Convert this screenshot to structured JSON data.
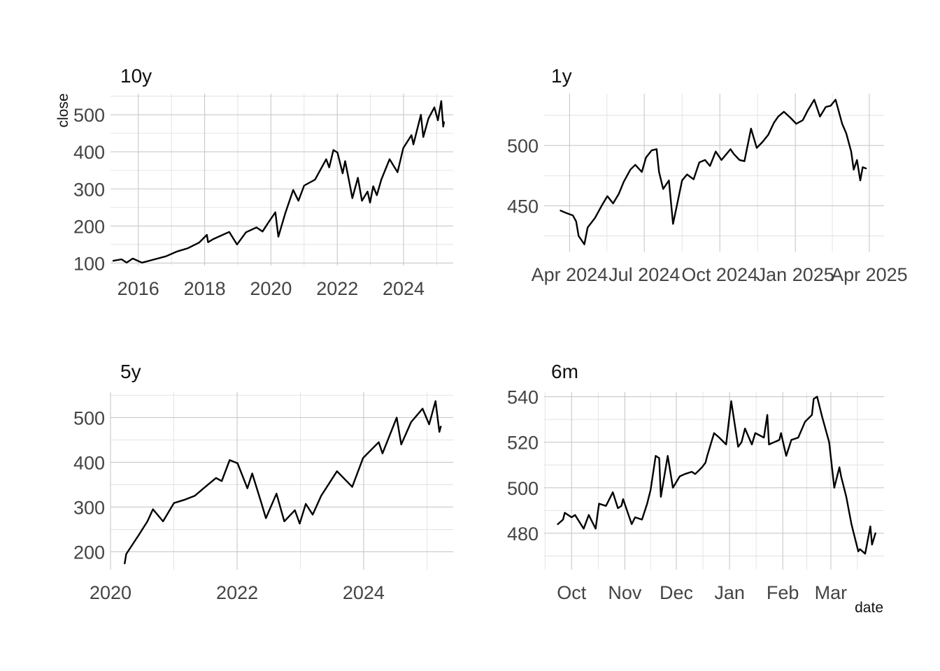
{
  "colors": {
    "line": "#000000",
    "grid_major": "#c8c8c8",
    "grid_minor": "#dedede",
    "background": "#ffffff"
  },
  "axis_titles": {
    "y": "close",
    "x": "date"
  },
  "chart_data": [
    {
      "type": "line",
      "title": "10y",
      "ylabel": "close",
      "xlabel": "",
      "x_type": "date",
      "xlim": [
        "2015-03-01",
        "2025-07-01"
      ],
      "ylim": [
        93,
        557
      ],
      "x_ticks": [
        "2016-01-01",
        "2018-01-01",
        "2020-01-01",
        "2022-01-01",
        "2024-01-01"
      ],
      "x_tick_labels": [
        "2016",
        "2018",
        "2020",
        "2022",
        "2024"
      ],
      "y_ticks": [
        100,
        200,
        300,
        400,
        500
      ],
      "y_tick_labels": [
        "100",
        "200",
        "300",
        "400",
        "500"
      ],
      "grid": true,
      "series": [
        {
          "x": [
            "2015-04-01",
            "2015-07-01",
            "2015-08-25",
            "2015-11-01",
            "2016-02-11",
            "2016-06-01",
            "2016-11-01",
            "2017-03-01",
            "2017-07-01",
            "2017-11-01",
            "2018-01-26",
            "2018-02-08",
            "2018-04-01",
            "2018-09-28",
            "2018-12-24",
            "2019-04-01",
            "2019-07-26",
            "2019-10-01",
            "2019-12-01",
            "2020-02-19",
            "2020-03-23",
            "2020-06-08",
            "2020-09-02",
            "2020-10-30",
            "2021-01-01",
            "2021-05-01",
            "2021-09-01",
            "2021-10-04",
            "2021-11-19",
            "2022-01-03",
            "2022-03-01",
            "2022-03-29",
            "2022-05-20",
            "2022-06-16",
            "2022-08-16",
            "2022-09-30",
            "2022-11-30",
            "2022-12-28",
            "2023-02-01",
            "2023-03-13",
            "2023-05-01",
            "2023-07-31",
            "2023-10-27",
            "2023-12-29",
            "2024-03-28",
            "2024-04-19",
            "2024-07-10",
            "2024-08-05",
            "2024-10-01",
            "2024-12-06",
            "2025-01-13",
            "2025-02-19",
            "2025-03-13",
            "2025-03-21"
          ],
          "y": [
            106,
            110,
            101,
            112,
            101,
            108,
            118,
            131,
            140,
            155,
            176,
            156,
            164,
            184,
            150,
            183,
            196,
            185,
            208,
            237,
            171,
            235,
            297,
            268,
            309,
            325,
            380,
            358,
            405,
            398,
            342,
            375,
            310,
            275,
            330,
            268,
            293,
            263,
            307,
            283,
            325,
            380,
            345,
            410,
            445,
            420,
            500,
            440,
            490,
            520,
            485,
            537,
            468,
            480
          ]
        }
      ]
    },
    {
      "type": "line",
      "title": "1y",
      "xlabel": "",
      "ylabel": "",
      "x_type": "date",
      "xlim": [
        "2024-03-01",
        "2025-04-19"
      ],
      "ylim": [
        412,
        543
      ],
      "x_ticks": [
        "2024-04-01",
        "2024-07-01",
        "2024-10-01",
        "2025-01-01",
        "2025-04-01"
      ],
      "x_tick_labels": [
        "Apr 2024",
        "Jul 2024",
        "Oct 2024",
        "Jan 2025",
        "Apr 2025"
      ],
      "y_ticks": [
        450,
        500
      ],
      "y_tick_labels": [
        "450",
        "500"
      ],
      "grid": true,
      "series": [
        {
          "x": [
            "2024-03-21",
            "2024-03-28",
            "2024-04-05",
            "2024-04-09",
            "2024-04-12",
            "2024-04-19",
            "2024-04-23",
            "2024-05-02",
            "2024-05-10",
            "2024-05-17",
            "2024-05-24",
            "2024-05-31",
            "2024-06-06",
            "2024-06-14",
            "2024-06-20",
            "2024-06-28",
            "2024-07-03",
            "2024-07-10",
            "2024-07-16",
            "2024-07-19",
            "2024-07-24",
            "2024-07-31",
            "2024-08-05",
            "2024-08-09",
            "2024-08-16",
            "2024-08-22",
            "2024-08-30",
            "2024-09-06",
            "2024-09-13",
            "2024-09-19",
            "2024-09-26",
            "2024-10-03",
            "2024-10-14",
            "2024-10-18",
            "2024-10-25",
            "2024-10-31",
            "2024-11-08",
            "2024-11-15",
            "2024-11-22",
            "2024-11-29",
            "2024-12-06",
            "2024-12-11",
            "2024-12-18",
            "2024-12-26",
            "2025-01-02",
            "2025-01-10",
            "2025-01-16",
            "2025-01-24",
            "2025-01-31",
            "2025-02-07",
            "2025-02-13",
            "2025-02-19",
            "2025-02-27",
            "2025-03-04",
            "2025-03-10",
            "2025-03-13",
            "2025-03-17",
            "2025-03-21",
            "2025-03-24",
            "2025-03-28"
          ],
          "y": [
            446,
            444,
            442,
            437,
            425,
            418,
            432,
            440,
            450,
            458,
            452,
            460,
            470,
            480,
            484,
            478,
            490,
            496,
            497,
            478,
            464,
            471,
            435,
            448,
            471,
            476,
            472,
            486,
            488,
            483,
            495,
            488,
            497,
            493,
            488,
            487,
            514,
            498,
            503,
            509,
            519,
            524,
            528,
            523,
            518,
            521,
            529,
            538,
            524,
            532,
            533,
            538,
            518,
            510,
            495,
            480,
            488,
            471,
            482,
            481
          ]
        }
      ]
    },
    {
      "type": "line",
      "title": "5y",
      "xlabel": "",
      "ylabel": "",
      "x_type": "date",
      "xlim": [
        "2020-01-01",
        "2025-06-01"
      ],
      "ylim": [
        160,
        557
      ],
      "x_ticks": [
        "2020-01-01",
        "2022-01-01",
        "2024-01-01"
      ],
      "x_tick_labels": [
        "2020",
        "2022",
        "2024"
      ],
      "y_ticks": [
        200,
        300,
        400,
        500
      ],
      "y_tick_labels": [
        "200",
        "300",
        "400",
        "500"
      ],
      "grid": true,
      "series": [
        {
          "x": [
            "2020-03-23",
            "2020-04-01",
            "2020-06-08",
            "2020-08-01",
            "2020-09-02",
            "2020-10-30",
            "2021-01-01",
            "2021-03-01",
            "2021-05-01",
            "2021-07-01",
            "2021-09-01",
            "2021-10-04",
            "2021-11-19",
            "2022-01-03",
            "2022-03-01",
            "2022-03-29",
            "2022-05-20",
            "2022-06-16",
            "2022-08-16",
            "2022-09-30",
            "2022-11-30",
            "2022-12-28",
            "2023-02-01",
            "2023-03-13",
            "2023-05-01",
            "2023-07-31",
            "2023-10-27",
            "2023-12-29",
            "2024-03-28",
            "2024-04-19",
            "2024-07-10",
            "2024-08-05",
            "2024-10-01",
            "2024-12-06",
            "2025-01-13",
            "2025-02-19",
            "2025-03-13",
            "2025-03-21"
          ],
          "y": [
            174,
            195,
            235,
            268,
            295,
            268,
            309,
            316,
            325,
            345,
            365,
            358,
            405,
            398,
            342,
            375,
            310,
            275,
            330,
            268,
            293,
            263,
            307,
            283,
            325,
            380,
            345,
            410,
            445,
            420,
            500,
            440,
            490,
            520,
            485,
            537,
            468,
            480
          ]
        }
      ]
    },
    {
      "type": "line",
      "title": "6m",
      "xlabel": "date",
      "ylabel": "",
      "x_type": "date",
      "xlim": [
        "2024-09-15",
        "2025-04-01"
      ],
      "ylim": [
        464,
        542
      ],
      "x_ticks": [
        "2024-10-01",
        "2024-11-01",
        "2024-12-01",
        "2025-01-01",
        "2025-02-01",
        "2025-03-01"
      ],
      "x_tick_labels": [
        "Oct",
        "Nov",
        "Dec",
        "Jan",
        "Feb",
        "Mar"
      ],
      "y_ticks": [
        480,
        500,
        520,
        540
      ],
      "y_tick_labels": [
        "480",
        "500",
        "520",
        "540"
      ],
      "grid": true,
      "series": [
        {
          "x": [
            "2024-09-23",
            "2024-09-26",
            "2024-09-27",
            "2024-10-01",
            "2024-10-03",
            "2024-10-08",
            "2024-10-11",
            "2024-10-15",
            "2024-10-17",
            "2024-10-21",
            "2024-10-23",
            "2024-10-25",
            "2024-10-28",
            "2024-10-30",
            "2024-10-31",
            "2024-11-05",
            "2024-11-07",
            "2024-11-11",
            "2024-11-14",
            "2024-11-16",
            "2024-11-19",
            "2024-11-21",
            "2024-11-22",
            "2024-11-26",
            "2024-11-29",
            "2024-12-03",
            "2024-12-06",
            "2024-12-10",
            "2024-12-12",
            "2024-12-16",
            "2024-12-18",
            "2024-12-19",
            "2024-12-23",
            "2024-12-26",
            "2024-12-30",
            "2025-01-02",
            "2025-01-06",
            "2025-01-08",
            "2025-01-10",
            "2025-01-14",
            "2025-01-16",
            "2025-01-21",
            "2025-01-23",
            "2025-01-24",
            "2025-01-27",
            "2025-01-30",
            "2025-01-31",
            "2025-02-03",
            "2025-02-06",
            "2025-02-10",
            "2025-02-14",
            "2025-02-18",
            "2025-02-19",
            "2025-02-21",
            "2025-02-24",
            "2025-02-28",
            "2025-03-03",
            "2025-03-06",
            "2025-03-07",
            "2025-03-10",
            "2025-03-12",
            "2025-03-13",
            "2025-03-14",
            "2025-03-17",
            "2025-03-18",
            "2025-03-21",
            "2025-03-24",
            "2025-03-25",
            "2025-03-27"
          ],
          "y": [
            484,
            486,
            489,
            487,
            488,
            482,
            488,
            482,
            493,
            492,
            495,
            498,
            491,
            492,
            495,
            484,
            487,
            486,
            493,
            499,
            514,
            513,
            496,
            514,
            500,
            505,
            506,
            507,
            506,
            509,
            511,
            514,
            524,
            522,
            519,
            538,
            518,
            520,
            526,
            519,
            524,
            522,
            532,
            519,
            520,
            521,
            524,
            514,
            521,
            522,
            529,
            532,
            539,
            540,
            531,
            520,
            500,
            509,
            505,
            496,
            488,
            484,
            481,
            472,
            473,
            471,
            483,
            475,
            480
          ]
        }
      ]
    }
  ]
}
